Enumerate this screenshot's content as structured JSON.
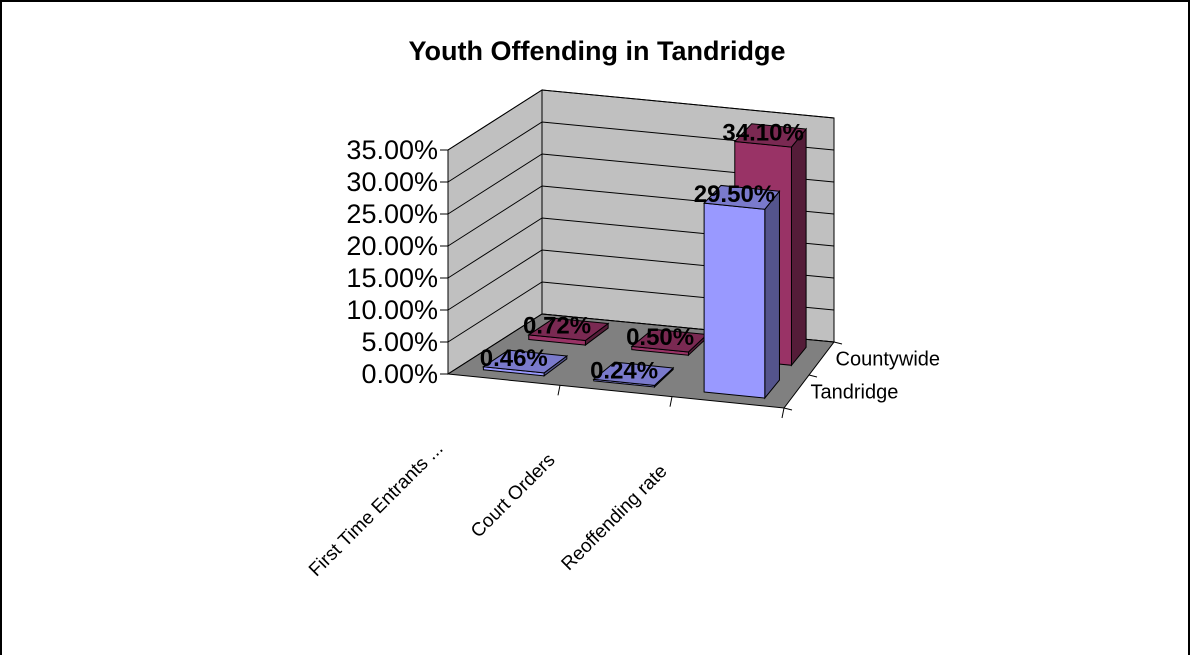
{
  "chart_data": {
    "type": "bar",
    "title": "Youth Offending in Tandridge",
    "categories": [
      "First Time Entrants ...",
      "Court Orders",
      "Reoffending rate"
    ],
    "series": [
      {
        "name": "Tandridge",
        "values": [
          0.46,
          0.24,
          29.5
        ],
        "labels": [
          "0.46%",
          "0.24%",
          "29.50%"
        ]
      },
      {
        "name": "Countywide",
        "values": [
          0.72,
          0.5,
          34.1
        ],
        "labels": [
          "0.72%",
          "0.50%",
          "34.10%"
        ]
      }
    ],
    "yticks": [
      "0.00%",
      "5.00%",
      "10.00%",
      "15.00%",
      "20.00%",
      "25.00%",
      "30.00%",
      "35.00%"
    ],
    "ylim": [
      0,
      35
    ],
    "grid": true,
    "legend": "none",
    "colors": {
      "Tandridge": "#9999ff",
      "Countywide": "#993366",
      "walls": "#c0c0c0",
      "floor": "#808080"
    }
  }
}
